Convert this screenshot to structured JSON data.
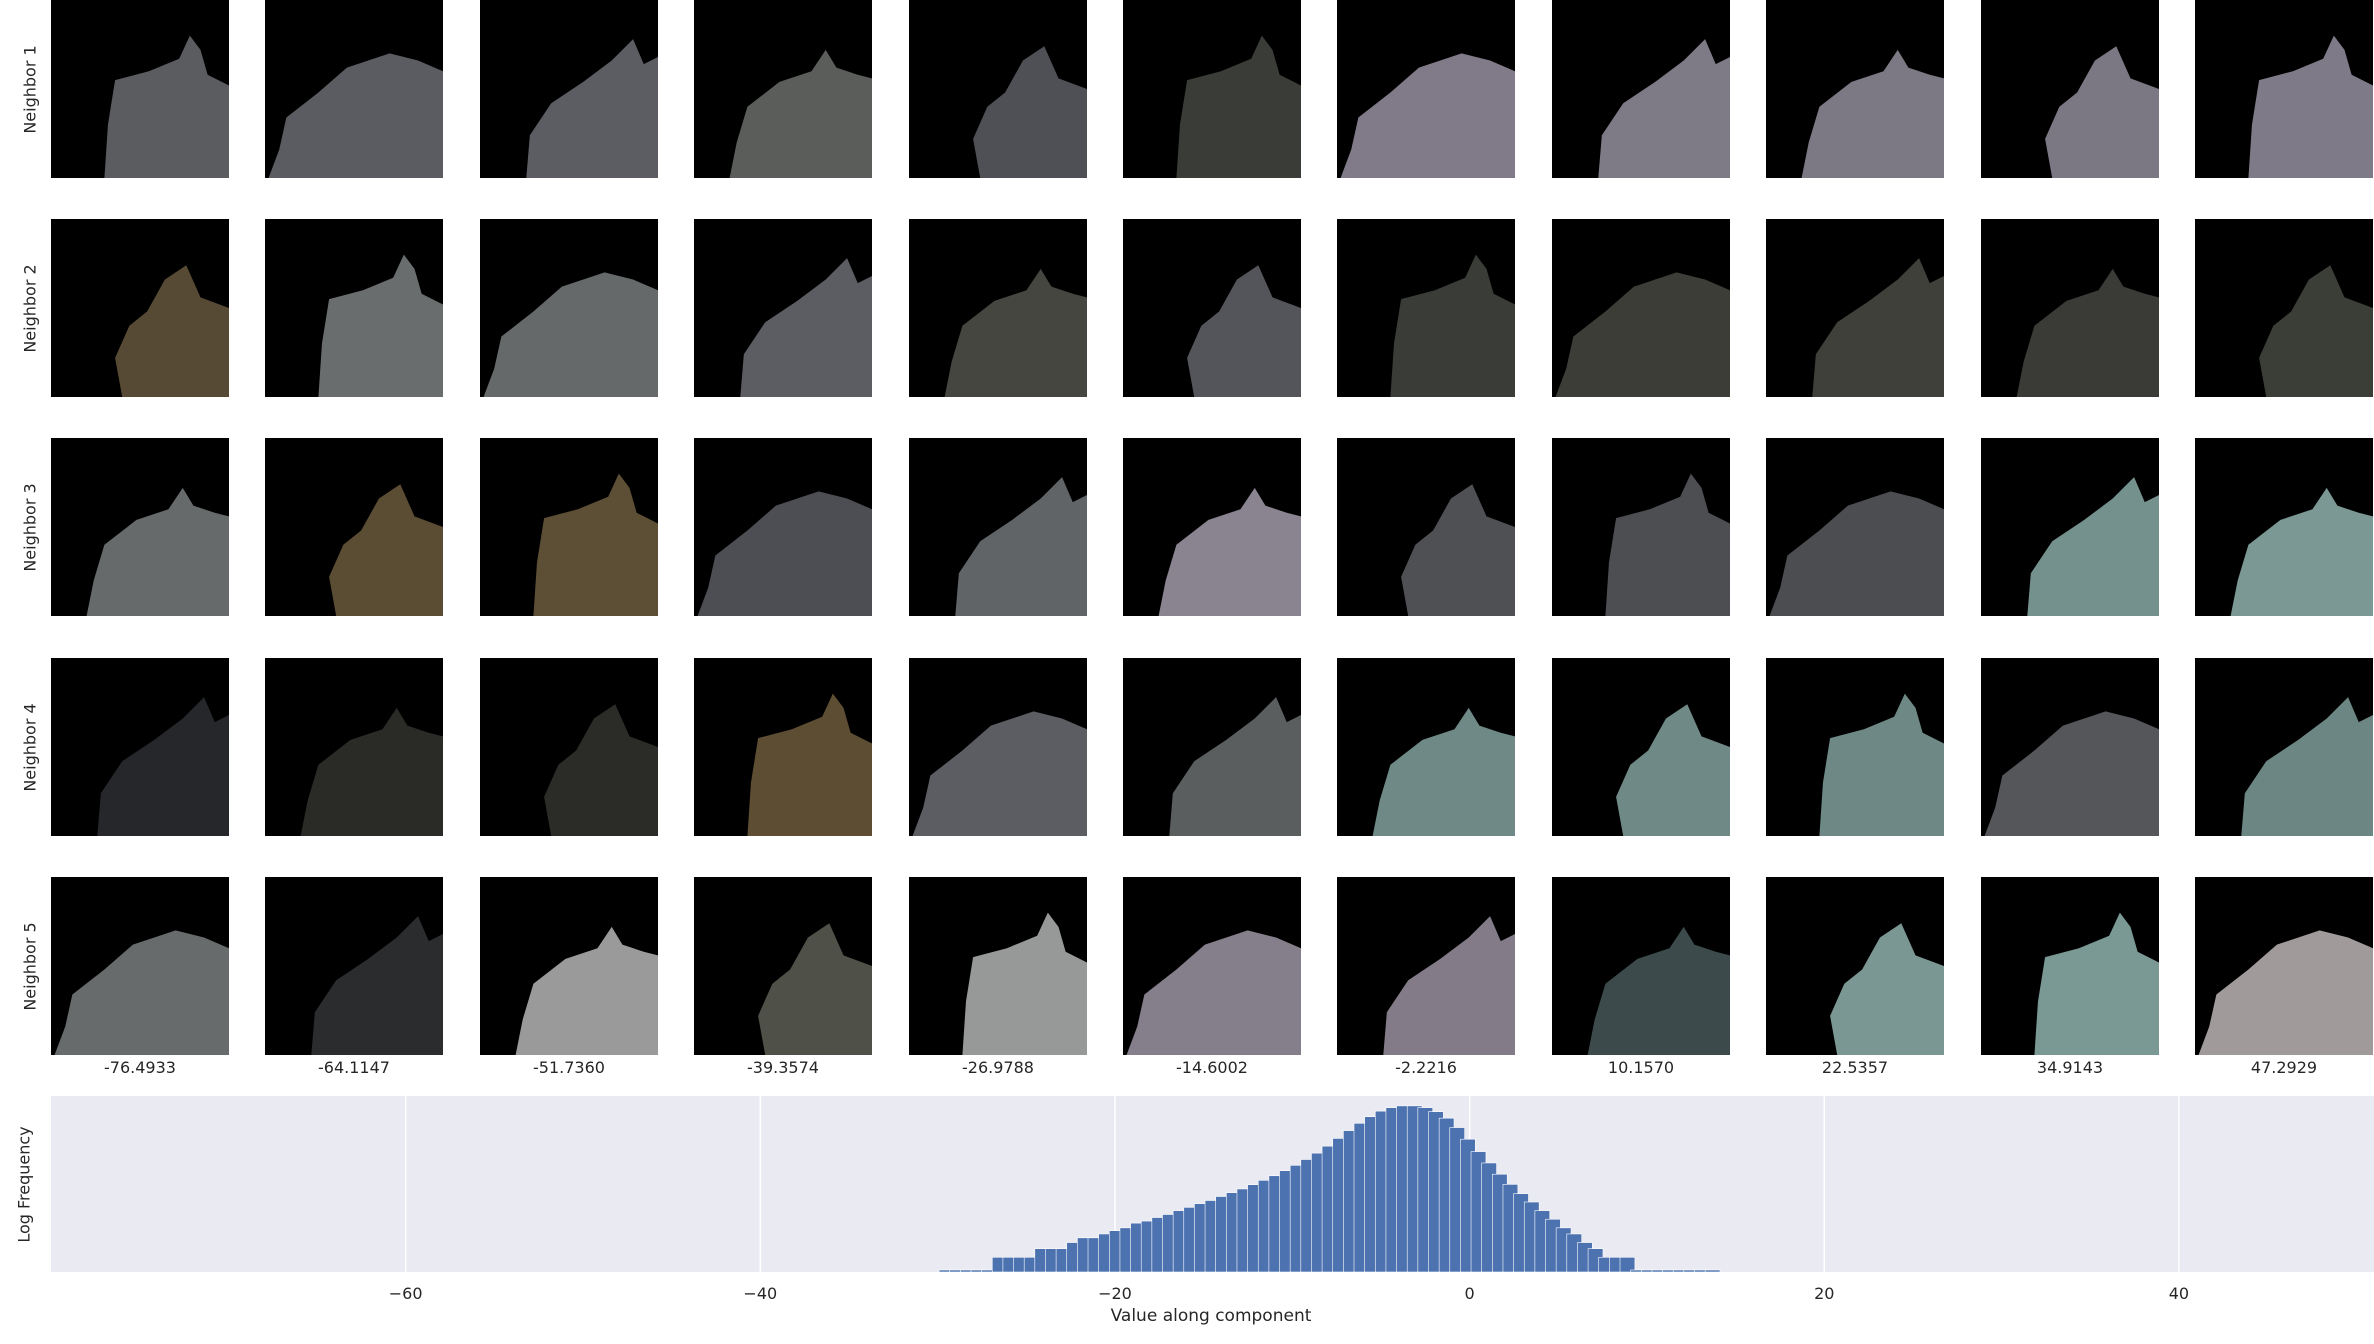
{
  "chart_data": [
    {
      "type": "image-grid",
      "row_labels": [
        "Neighbor 1",
        "Neighbor 2",
        "Neighbor 3",
        "Neighbor 4",
        "Neighbor 5"
      ],
      "column_values": [
        "-76.4933",
        "-64.1147",
        "-51.7360",
        "-39.3574",
        "-26.9788",
        "-14.6002",
        "-2.2216",
        "10.1570",
        "22.5357",
        "34.9143",
        "47.2929"
      ],
      "tile_colors": [
        [
          "#5a5c60",
          "#5a5c62",
          "#5b5d62",
          "#5a5d5a",
          "#4f5055",
          "#3a3c38",
          "#817b89",
          "#7e7a86",
          "#7d7984",
          "#7b7783",
          "#7e7a87"
        ],
        [
          "#574a34",
          "#6a6d6e",
          "#66696a",
          "#5b5d62",
          "#44463f",
          "#53555a",
          "#3a3c38",
          "#3b3d36",
          "#3e4039",
          "#3a3b37",
          "#3b3d37"
        ],
        [
          "#666a6a",
          "#5b4d33",
          "#5d4f35",
          "#4d4e53",
          "#616466",
          "#8a8390",
          "#4f5054",
          "#4d4e52",
          "#4c4d51",
          "#75918d",
          "#7b9894"
        ],
        [
          "#26272b",
          "#2a2b27",
          "#2b2c27",
          "#5d4d32",
          "#5b5d62",
          "#5a5e5f",
          "#6f8a86",
          "#6f8a86",
          "#6e8985",
          "#55565a",
          "#6c8783"
        ],
        [
          "#686b6b",
          "#2b2c2e",
          "#999a99",
          "#4f5148",
          "#979898",
          "#857e8b",
          "#837c88",
          "#3c4a4c",
          "#7a9793",
          "#7a9894",
          "#a19a9b"
        ]
      ]
    },
    {
      "type": "bar",
      "ylabel": "Log Frequency",
      "xlabel": "Value along component",
      "xlim": [
        -80,
        51
      ],
      "xticks": [
        -60,
        -40,
        -20,
        0,
        20,
        40
      ],
      "xtick_labels": [
        "−60",
        "−40",
        "−20",
        "0",
        "20",
        "40"
      ],
      "bar_color": "#4c72b0",
      "bar_width": 0.84,
      "y_scale": "log",
      "x": [
        -29.5,
        -28.9,
        -28.3,
        -27.7,
        -27.1,
        -26.5,
        -25.9,
        -25.3,
        -24.7,
        -24.1,
        -23.5,
        -22.9,
        -22.3,
        -21.7,
        -21.1,
        -20.5,
        -19.9,
        -19.3,
        -18.7,
        -18.1,
        -17.5,
        -16.9,
        -16.3,
        -15.7,
        -15.1,
        -14.5,
        -13.9,
        -13.3,
        -12.7,
        -12.1,
        -11.5,
        -10.9,
        -10.3,
        -9.7,
        -9.1,
        -8.5,
        -7.9,
        -7.3,
        -6.7,
        -6.1,
        -5.5,
        -4.9,
        -4.3,
        -3.7,
        -3.1,
        -2.5,
        -1.9,
        -1.3,
        -0.7,
        -0.1,
        0.5,
        1.1,
        1.7,
        2.3,
        2.9,
        3.5,
        4.1,
        4.7,
        5.3,
        5.9,
        6.5,
        7.1,
        7.7,
        8.3,
        8.9,
        9.5,
        10.1,
        10.7,
        11.3,
        11.9,
        12.5,
        13.1,
        13.7
      ],
      "y": [
        1,
        1,
        1,
        1,
        1,
        2,
        2,
        2,
        2,
        3,
        3,
        3,
        4,
        5,
        5,
        6,
        7,
        8,
        10,
        11,
        13,
        15,
        18,
        21,
        25,
        29,
        35,
        42,
        50,
        61,
        75,
        93,
        118,
        152,
        200,
        270,
        375,
        540,
        780,
        1100,
        1500,
        1950,
        2300,
        2500,
        2500,
        2300,
        1900,
        1400,
        900,
        520,
        290,
        170,
        100,
        62,
        40,
        27,
        18,
        12,
        8,
        6,
        4,
        3,
        2,
        2,
        2,
        1,
        1,
        1,
        1,
        1,
        1,
        1,
        1
      ],
      "ylim": [
        1,
        3000
      ]
    }
  ]
}
